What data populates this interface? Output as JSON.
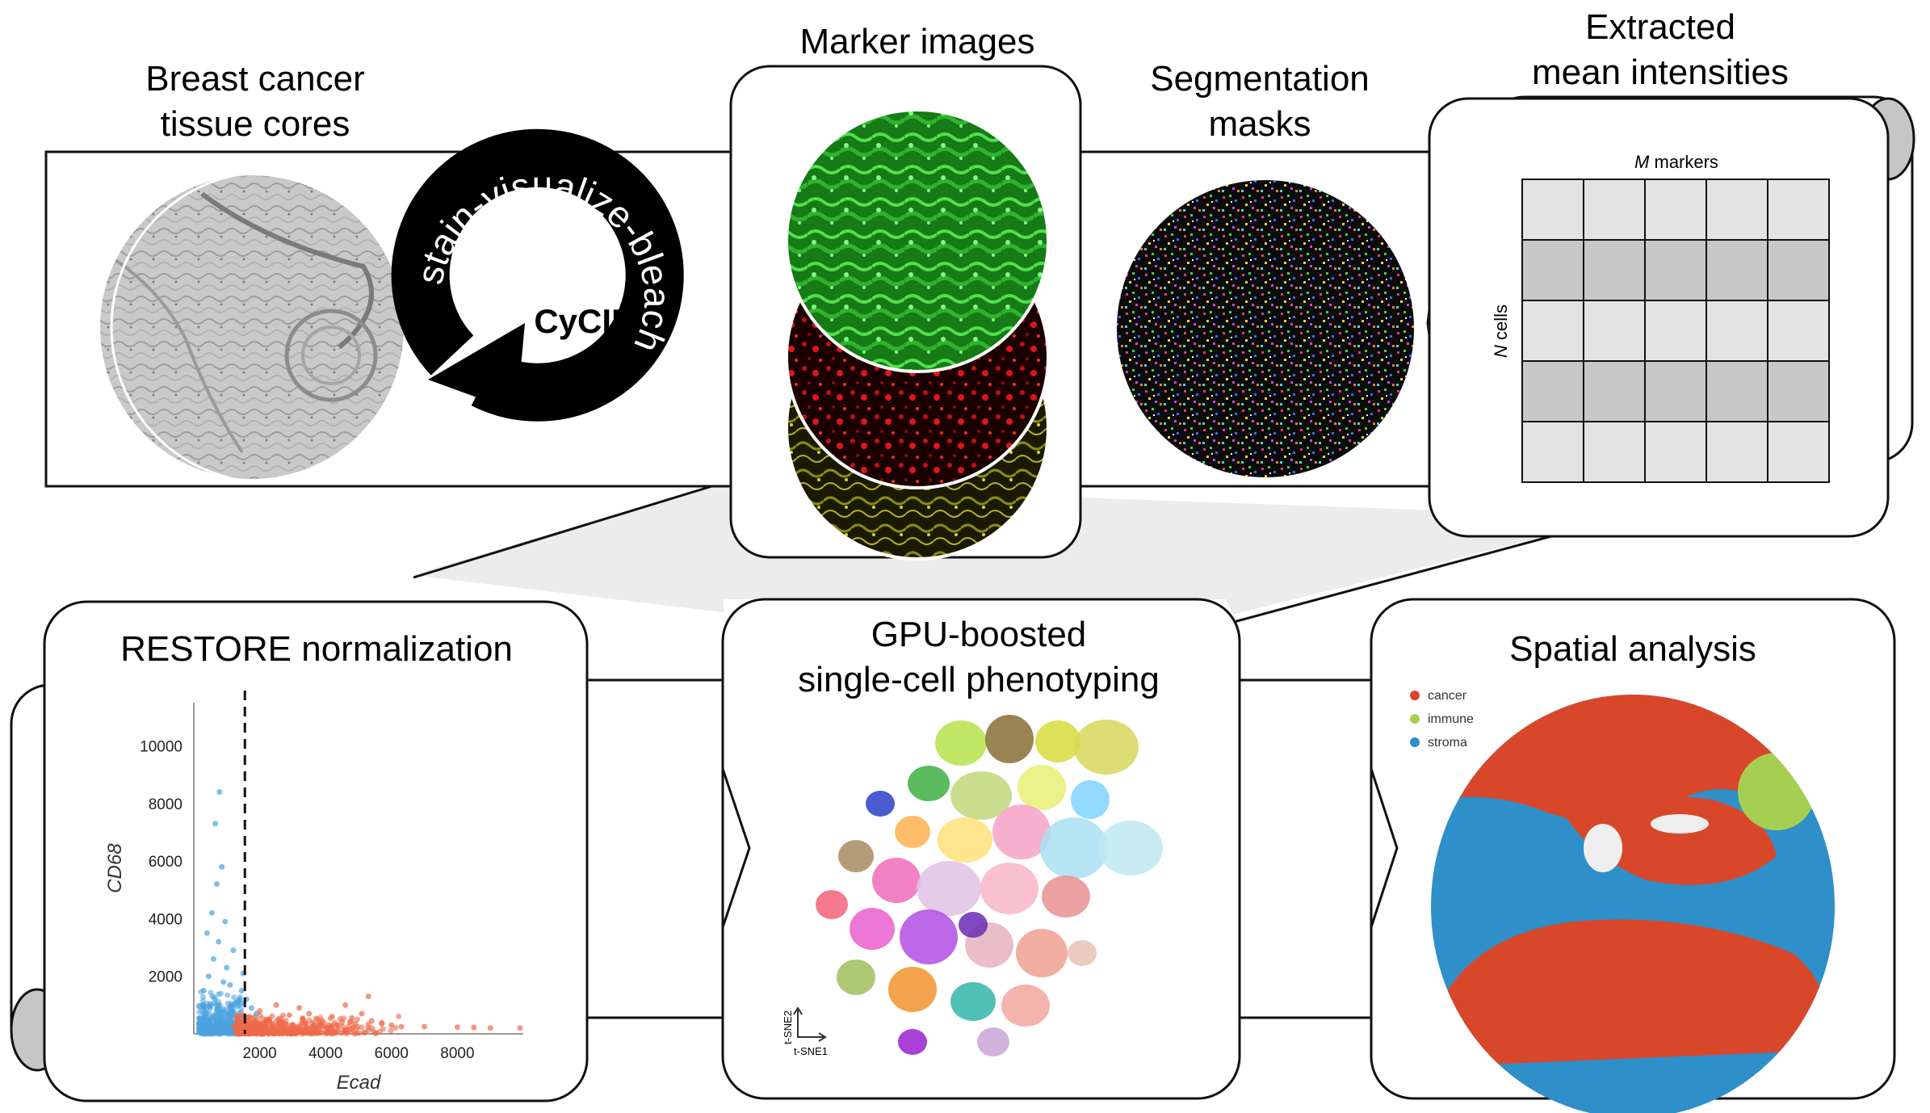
{
  "panels": {
    "tissue": {
      "title_lines": [
        "Breast cancer",
        "tissue cores"
      ]
    },
    "cycle": {
      "arc_text": "stain-visualize-bleach",
      "center_label": "CyCIF"
    },
    "markers": {
      "title": "Marker images"
    },
    "segmentation": {
      "title_lines": [
        "Segmentation",
        "masks"
      ]
    },
    "intensities": {
      "title_lines": [
        "Extracted",
        "mean intensities"
      ],
      "col_label_var": "M",
      "col_label_rest": " markers",
      "row_label_var": "N",
      "row_label_rest": " cells",
      "grid": {
        "rows": 5,
        "cols": 5,
        "dark_rows": [
          1,
          3
        ]
      }
    },
    "restore": {
      "title": "RESTORE normalization"
    },
    "phenotyping": {
      "title_lines": [
        "GPU-boosted",
        "single-cell phenotyping"
      ],
      "axis_x": "t-SNE1",
      "axis_y": "t-SNE2"
    },
    "spatial": {
      "title": "Spatial analysis",
      "legend": [
        {
          "label": "cancer",
          "color": "#d9472b"
        },
        {
          "label": "immune",
          "color": "#a6cf52"
        },
        {
          "label": "stroma",
          "color": "#2e8fc9"
        }
      ]
    }
  },
  "chart_data": {
    "type": "scatter",
    "xlabel": "Ecad",
    "ylabel": "CD68",
    "xlim": [
      0,
      10000
    ],
    "ylim": [
      0,
      11500
    ],
    "x_ticks": [
      2000,
      4000,
      6000,
      8000
    ],
    "y_ticks": [
      2000,
      4000,
      6000,
      8000,
      10000
    ],
    "threshold_x": 1550,
    "series": [
      {
        "color": "#4aa3e0",
        "points": [
          [
            200,
            300
          ],
          [
            350,
            600
          ],
          [
            500,
            900
          ],
          [
            650,
            1200
          ],
          [
            800,
            500
          ],
          [
            300,
            1500
          ],
          [
            450,
            2000
          ],
          [
            600,
            2600
          ],
          [
            750,
            3200
          ],
          [
            900,
            1800
          ],
          [
            1000,
            2300
          ],
          [
            1150,
            700
          ],
          [
            1300,
            1100
          ],
          [
            1450,
            1500
          ],
          [
            550,
            4200
          ],
          [
            700,
            5200
          ],
          [
            850,
            5800
          ],
          [
            650,
            7300
          ],
          [
            780,
            8400
          ],
          [
            400,
            3500
          ],
          [
            1200,
            2900
          ],
          [
            950,
            3900
          ],
          [
            1100,
            1700
          ],
          [
            250,
            1000
          ],
          [
            1500,
            2100
          ],
          [
            1600,
            1200
          ],
          [
            1750,
            900
          ],
          [
            1900,
            700
          ]
        ]
      },
      {
        "color": "#f0694a",
        "points": [
          [
            1200,
            250
          ],
          [
            1500,
            300
          ],
          [
            1800,
            280
          ],
          [
            2100,
            350
          ],
          [
            2400,
            300
          ],
          [
            2700,
            420
          ],
          [
            3000,
            320
          ],
          [
            3300,
            500
          ],
          [
            3600,
            380
          ],
          [
            3900,
            450
          ],
          [
            4200,
            600
          ],
          [
            4500,
            400
          ],
          [
            4800,
            550
          ],
          [
            5100,
            700
          ],
          [
            5400,
            450
          ],
          [
            5700,
            350
          ],
          [
            6000,
            300
          ],
          [
            6300,
            250
          ],
          [
            2000,
            800
          ],
          [
            2500,
            1000
          ],
          [
            3200,
            900
          ],
          [
            4600,
            1000
          ],
          [
            5300,
            1300
          ],
          [
            1700,
            600
          ],
          [
            2200,
            500
          ],
          [
            2900,
            650
          ],
          [
            3500,
            700
          ],
          [
            4100,
            300
          ],
          [
            4900,
            350
          ],
          [
            7000,
            250
          ],
          [
            8000,
            230
          ],
          [
            8500,
            220
          ],
          [
            9000,
            200
          ],
          [
            9900,
            200
          ]
        ]
      }
    ]
  }
}
